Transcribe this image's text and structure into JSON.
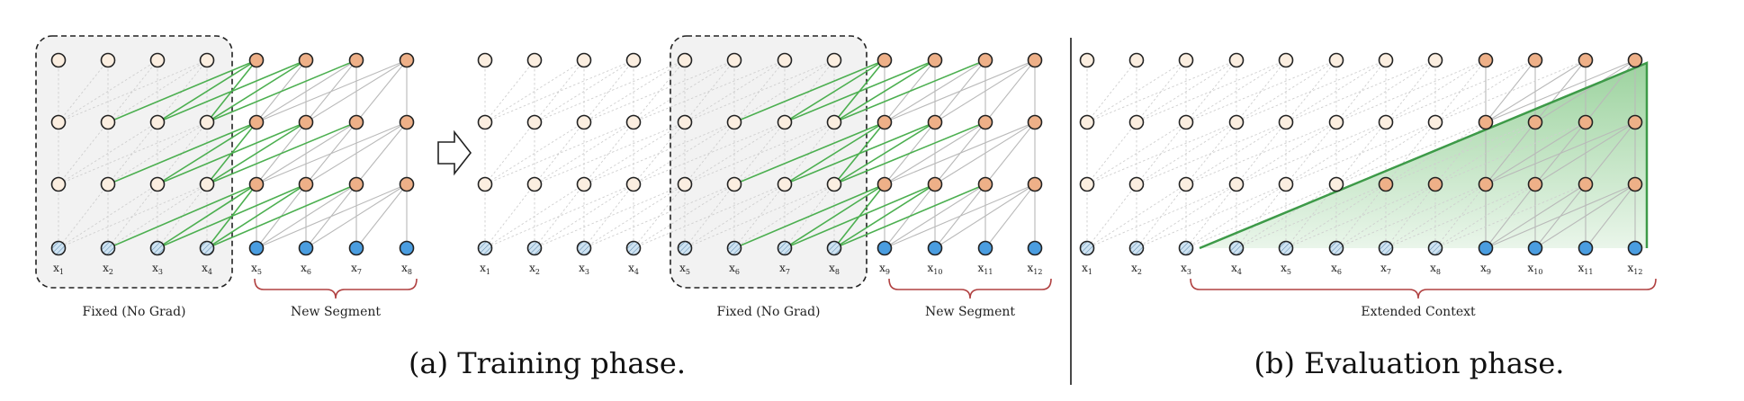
{
  "colors": {
    "token_past": "#fbeee0",
    "token_current": "#eeb088",
    "input_new": "#4a9de0",
    "input_hatched": "#cfe3f2",
    "green": "#4caf50",
    "gray_edge": "#c8c8c8",
    "brace": "#b04040",
    "box_fill": "#f2f2f2",
    "divider": "#333333"
  },
  "panel_a": {
    "caption": "(a) Training phase.",
    "left_part": {
      "labels": [
        "x1",
        "x2",
        "x3",
        "x4",
        "x5",
        "x6",
        "x7",
        "x8"
      ],
      "box_label": "Fixed (No Grad)",
      "brace_label": "New Segment"
    },
    "right_part": {
      "labels": [
        "x1",
        "x2",
        "x3",
        "x4",
        "x5",
        "x6",
        "x7",
        "x8",
        "x9",
        "x10",
        "x11",
        "x12"
      ],
      "box_label": "Fixed (No Grad)",
      "brace_label": "New Segment"
    }
  },
  "panel_b": {
    "caption": "(b) Evaluation phase.",
    "labels": [
      "x1",
      "x2",
      "x3",
      "x4",
      "x5",
      "x6",
      "x7",
      "x8",
      "x9",
      "x10",
      "x11",
      "x12"
    ],
    "brace_label": "Extended Context"
  }
}
